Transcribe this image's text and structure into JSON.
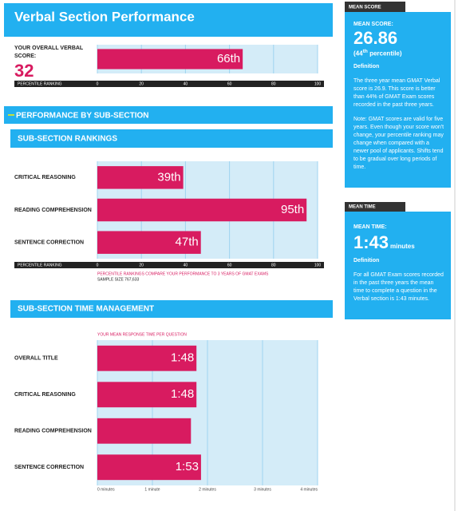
{
  "header": {
    "title": "Verbal Section Performance"
  },
  "overall": {
    "label": "YOUR OVERALL VERBAL SCORE:",
    "score": "32",
    "values": [
      66
    ],
    "value_labels": [
      "66th"
    ],
    "axis_label": "PERCENTILE RANKING",
    "xlim": [
      0,
      100
    ],
    "xticks": [
      0,
      20,
      40,
      60,
      80,
      100
    ]
  },
  "section_heading": "PERFORMANCE BY SUB-SECTION",
  "rankings": {
    "title": "SUB-SECTION RANKINGS",
    "categories": [
      "CRITICAL REASONING",
      "READING COMPREHENSION",
      "SENTENCE CORRECTION"
    ],
    "values": [
      39,
      95,
      47
    ],
    "value_labels": [
      "39th",
      "95th",
      "47th"
    ],
    "axis_label": "PERCENTILE RANKING",
    "xlim": [
      0,
      100
    ],
    "xticks": [
      0,
      20,
      40,
      60,
      80,
      100
    ],
    "note": "PERCENTILE RANKINGS COMPARE YOUR PERFORMANCE TO 3 YEARS OF GMAT EXAMS",
    "sample_size": "SAMPLE SIZE 767,633"
  },
  "time": {
    "title": "SUB-SECTION TIME MANAGEMENT",
    "axis_title": "YOUR MEAN RESPONSE TIME PER QUESTION",
    "categories": [
      "OVERALL TITLE",
      "CRITICAL REASONING",
      "READING COMPREHENSION",
      "SENTENCE CORRECTION"
    ],
    "values": [
      1.8,
      1.8,
      1.7,
      1.883
    ],
    "value_labels": [
      "1:48",
      "1:48",
      null,
      "1:53"
    ],
    "xlim": [
      0,
      4
    ],
    "xticks": [
      {
        "value": 0,
        "label": "0 minutes"
      },
      {
        "value": 1,
        "label": "1 minute"
      },
      {
        "value": 2,
        "label": "2 minutes"
      },
      {
        "value": 3,
        "label": "3 minutes"
      },
      {
        "value": 4,
        "label": "4 minutes"
      }
    ]
  },
  "mean_score": {
    "tab": "MEAN SCORE",
    "label": "MEAN SCORE:",
    "value": "26.86",
    "percentile_pre": "(44",
    "percentile_sup": "th",
    "percentile_post": " percentile)",
    "definition": "Definition",
    "text": "The three year mean GMAT Verbal score is 26.9. This score is better than 44% of GMAT Exam scores recorded in the past three years.",
    "note": "Note: GMAT scores are valid for five years. Even though your score won't change, your percentile ranking may change when compared with a newer pool of applicants. Shifts tend to be gradual over long periods of time."
  },
  "mean_time": {
    "tab": "MEAN TIME",
    "label": "MEAN TIME:",
    "value": "1:43",
    "unit": "minutes",
    "definition": "Definition",
    "text": "For all GMAT Exam scores recorded in the past three years the mean time to complete a question in the Verbal section is 1:43 minutes."
  }
}
